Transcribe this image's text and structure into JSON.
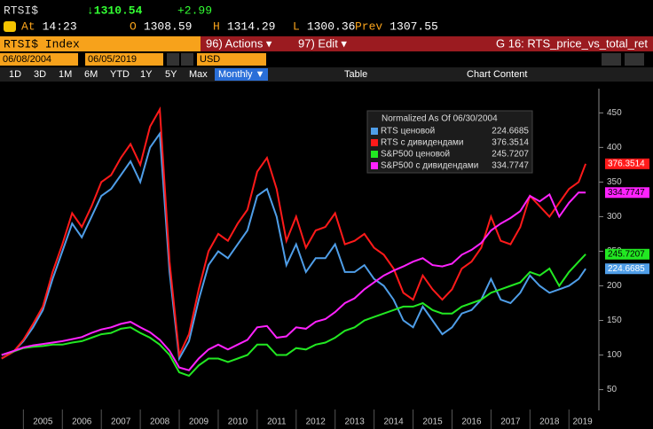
{
  "header": {
    "ticker": "RTSI$",
    "price": "↓1310.54",
    "change": "+2.99",
    "quote": [
      {
        "label": "At",
        "value": "14:23"
      },
      {
        "label": "O",
        "value": "1308.59"
      },
      {
        "label": "H",
        "value": "1314.29"
      },
      {
        "label": "L",
        "value": "1300.36"
      },
      {
        "label": "Prev",
        "value": "1307.55"
      }
    ]
  },
  "toolbar": {
    "security": "RTSI$ Index",
    "actions": "96) Actions ▾",
    "edit": "97) Edit ▾",
    "graph": "G 16: RTS_price_vs_total_ret"
  },
  "dates": {
    "start": "06/08/2004",
    "end": "06/05/2019",
    "currency": "USD"
  },
  "periods": [
    "1D",
    "3D",
    "1M",
    "6M",
    "YTD",
    "1Y",
    "5Y",
    "Max"
  ],
  "frequency": "Monthly ▼",
  "table": "Table",
  "chart_content": "Chart Content",
  "chart_data": {
    "type": "line",
    "legend_title": "Normalized As Of 06/30/2004",
    "x": [
      2004.44,
      2004.75,
      2005,
      2005.25,
      2005.5,
      2005.75,
      2006,
      2006.25,
      2006.5,
      2006.75,
      2007,
      2007.25,
      2007.5,
      2007.75,
      2008,
      2008.25,
      2008.5,
      2008.75,
      2009,
      2009.25,
      2009.5,
      2009.75,
      2010,
      2010.25,
      2010.5,
      2010.75,
      2011,
      2011.25,
      2011.5,
      2011.75,
      2012,
      2012.25,
      2012.5,
      2012.75,
      2013,
      2013.25,
      2013.5,
      2013.75,
      2014,
      2014.25,
      2014.5,
      2014.75,
      2015,
      2015.25,
      2015.5,
      2015.75,
      2016,
      2016.25,
      2016.5,
      2016.75,
      2017,
      2017.25,
      2017.5,
      2017.75,
      2018,
      2018.25,
      2018.5,
      2018.75,
      2019,
      2019.25,
      2019.43
    ],
    "series": [
      {
        "name": "RTS ценовой",
        "color": "#4f9ee8",
        "values": [
          95,
          105,
          120,
          140,
          165,
          210,
          250,
          290,
          270,
          300,
          330,
          340,
          360,
          380,
          350,
          400,
          420,
          220,
          95,
          120,
          180,
          230,
          250,
          240,
          260,
          280,
          330,
          340,
          300,
          230,
          260,
          220,
          240,
          240,
          260,
          220,
          220,
          230,
          210,
          200,
          180,
          150,
          140,
          170,
          150,
          130,
          140,
          160,
          165,
          180,
          210,
          180,
          175,
          190,
          215,
          200,
          190,
          195,
          200,
          210,
          224.6685
        ]
      },
      {
        "name": "RTS с дивидендами",
        "color": "#ff1a1a",
        "values": [
          95,
          105,
          122,
          145,
          170,
          220,
          260,
          305,
          285,
          315,
          350,
          360,
          385,
          405,
          375,
          430,
          455,
          235,
          100,
          130,
          195,
          250,
          275,
          265,
          290,
          310,
          365,
          385,
          340,
          265,
          300,
          255,
          280,
          285,
          305,
          260,
          265,
          275,
          255,
          245,
          225,
          190,
          180,
          215,
          195,
          180,
          195,
          225,
          235,
          255,
          300,
          265,
          260,
          285,
          330,
          315,
          300,
          320,
          340,
          350,
          376.3514
        ]
      },
      {
        "name": "S&P500 ценовой",
        "color": "#22e822",
        "values": [
          100,
          105,
          110,
          112,
          113,
          115,
          115,
          118,
          120,
          125,
          130,
          132,
          138,
          140,
          132,
          125,
          115,
          100,
          75,
          70,
          85,
          95,
          95,
          90,
          95,
          100,
          115,
          115,
          100,
          100,
          110,
          108,
          115,
          118,
          125,
          135,
          140,
          150,
          155,
          160,
          165,
          170,
          170,
          175,
          165,
          160,
          160,
          170,
          175,
          180,
          190,
          195,
          200,
          205,
          220,
          215,
          225,
          200,
          220,
          235,
          245.7207
        ]
      },
      {
        "name": "S&P500 с дивидендами",
        "color": "#ff22ff",
        "values": [
          100,
          106,
          111,
          114,
          116,
          118,
          120,
          123,
          126,
          132,
          137,
          140,
          145,
          148,
          140,
          133,
          122,
          106,
          82,
          78,
          95,
          108,
          115,
          108,
          115,
          122,
          140,
          142,
          125,
          127,
          140,
          138,
          148,
          152,
          162,
          175,
          182,
          195,
          205,
          215,
          222,
          228,
          235,
          240,
          230,
          228,
          232,
          245,
          252,
          262,
          280,
          290,
          298,
          308,
          330,
          322,
          332,
          300,
          320,
          335,
          334.7747
        ]
      }
    ],
    "xlim": [
      2004.4,
      2019.7
    ],
    "xticks": [
      {
        "value": 2005,
        "label": "2005"
      },
      {
        "value": 2006,
        "label": "2006"
      },
      {
        "value": 2007,
        "label": "2007"
      },
      {
        "value": 2008,
        "label": "2008"
      },
      {
        "value": 2009,
        "label": "2009"
      },
      {
        "value": 2010,
        "label": "2010"
      },
      {
        "value": 2011,
        "label": "2011"
      },
      {
        "value": 2012,
        "label": "2012"
      },
      {
        "value": 2013,
        "label": "2013"
      },
      {
        "value": 2014,
        "label": "2014"
      },
      {
        "value": 2015,
        "label": "2015"
      },
      {
        "value": 2016,
        "label": "2016"
      },
      {
        "value": 2017,
        "label": "2017"
      },
      {
        "value": 2018,
        "label": "2018"
      },
      {
        "value": 2019,
        "label": "2019"
      }
    ],
    "ylim": [
      20,
      485
    ],
    "yticks": [
      50,
      100,
      150,
      200,
      250,
      300,
      350,
      400,
      450
    ],
    "grid": false
  }
}
